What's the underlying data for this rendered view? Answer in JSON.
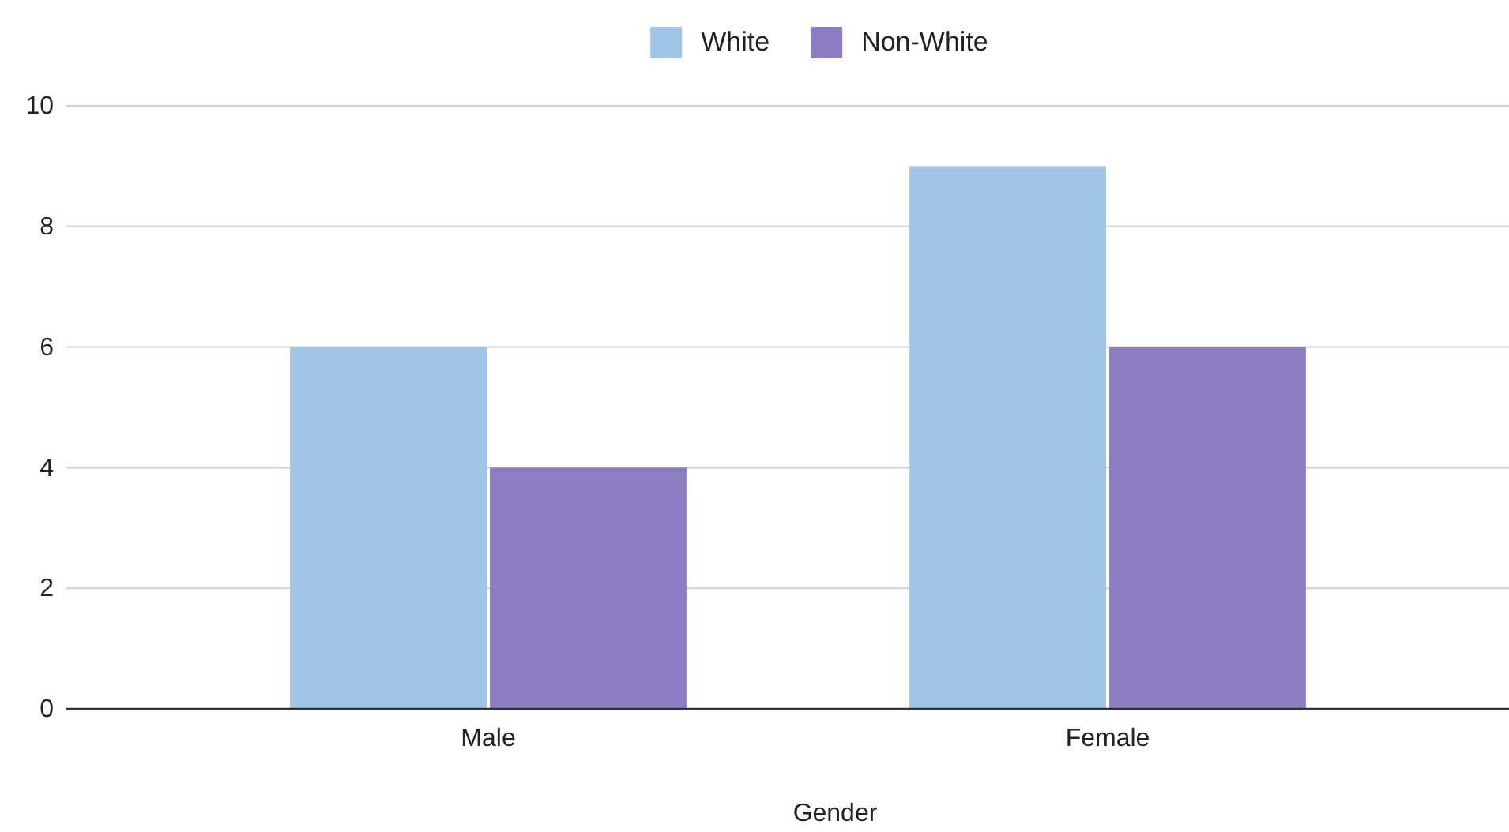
{
  "chart_data": {
    "type": "bar",
    "xlabel": "Gender",
    "categories": [
      "Male",
      "Female"
    ],
    "series": [
      {
        "name": "White",
        "color": "#9fc5e8",
        "values": [
          6,
          9
        ]
      },
      {
        "name": "Non-White",
        "color": "#8e7cc3",
        "values": [
          4,
          6
        ]
      }
    ],
    "ylim": [
      0,
      10
    ],
    "yticks": [
      0,
      2,
      4,
      6,
      8,
      10
    ],
    "grid": "y",
    "legend": "top"
  }
}
